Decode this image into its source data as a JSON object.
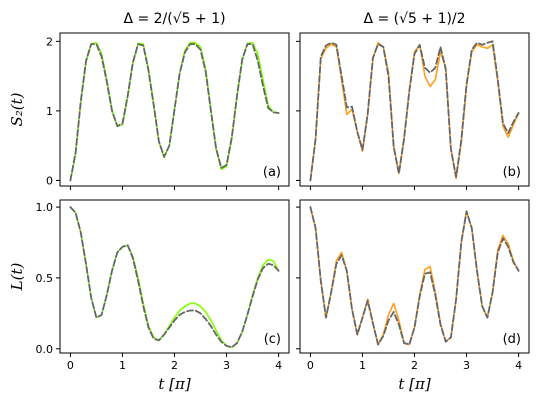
{
  "chart_data": [
    {
      "type": "line",
      "panel": "a",
      "title": "Δ = 2/(√5 + 1)",
      "xlabel": "",
      "ylabel": "S₂(t)",
      "xlim": [
        -0.2,
        4.2
      ],
      "ylim": [
        -0.08,
        2.12
      ],
      "xticks": [
        0,
        1,
        2,
        3,
        4
      ],
      "xtick_labels": [],
      "yticks": [
        0,
        1,
        2
      ],
      "ytick_labels": [
        "0",
        "1",
        "2"
      ],
      "label": "(a)",
      "x": [
        0,
        0.1,
        0.2,
        0.3,
        0.4,
        0.5,
        0.6,
        0.7,
        0.8,
        0.9,
        1.0,
        1.1,
        1.2,
        1.3,
        1.4,
        1.5,
        1.6,
        1.7,
        1.8,
        1.9,
        2.0,
        2.1,
        2.2,
        2.3,
        2.4,
        2.5,
        2.6,
        2.7,
        2.8,
        2.9,
        3.0,
        3.1,
        3.2,
        3.3,
        3.4,
        3.5,
        3.6,
        3.7,
        3.8,
        3.9,
        4.0
      ],
      "series": [
        {
          "color": "#7fff00",
          "dash": false,
          "values": [
            0.0,
            0.38,
            1.12,
            1.7,
            1.96,
            1.98,
            1.82,
            1.45,
            1.02,
            0.78,
            0.8,
            1.2,
            1.68,
            1.97,
            1.96,
            1.6,
            1.1,
            0.56,
            0.33,
            0.5,
            1.02,
            1.55,
            1.87,
            1.98,
            1.98,
            1.92,
            1.6,
            1.02,
            0.45,
            0.16,
            0.2,
            0.6,
            1.2,
            1.72,
            1.97,
            1.98,
            1.82,
            1.45,
            1.08,
            0.98,
            0.97
          ]
        },
        {
          "color": "#666666",
          "dash": true,
          "values": [
            0.0,
            0.4,
            1.14,
            1.72,
            1.96,
            1.96,
            1.78,
            1.42,
            1.0,
            0.78,
            0.82,
            1.22,
            1.7,
            1.96,
            1.94,
            1.58,
            1.08,
            0.56,
            0.34,
            0.5,
            1.02,
            1.54,
            1.84,
            1.96,
            1.96,
            1.88,
            1.56,
            1.0,
            0.46,
            0.18,
            0.22,
            0.62,
            1.22,
            1.74,
            1.96,
            1.96,
            1.72,
            1.36,
            1.04,
            0.98,
            0.97
          ]
        }
      ]
    },
    {
      "type": "line",
      "panel": "b",
      "title": "Δ = (√5 + 1)/2",
      "xlabel": "",
      "ylabel": "",
      "xlim": [
        -0.2,
        4.2
      ],
      "ylim": [
        -0.08,
        2.12
      ],
      "xticks": [
        0,
        1,
        2,
        3,
        4
      ],
      "xtick_labels": [],
      "yticks": [
        0,
        1,
        2
      ],
      "ytick_labels": [],
      "label": "(b)",
      "x": [
        0,
        0.1,
        0.2,
        0.3,
        0.4,
        0.5,
        0.6,
        0.7,
        0.8,
        0.9,
        1.0,
        1.1,
        1.2,
        1.3,
        1.4,
        1.5,
        1.6,
        1.7,
        1.8,
        1.9,
        2.0,
        2.1,
        2.2,
        2.3,
        2.4,
        2.5,
        2.6,
        2.7,
        2.8,
        2.9,
        3.0,
        3.1,
        3.2,
        3.3,
        3.4,
        3.5,
        3.6,
        3.7,
        3.8,
        3.9,
        4.0
      ],
      "series": [
        {
          "color": "#ff9f1c",
          "dash": false,
          "values": [
            0.0,
            0.6,
            1.75,
            1.9,
            1.96,
            1.92,
            1.45,
            0.95,
            1.02,
            0.7,
            0.42,
            0.95,
            1.75,
            1.98,
            1.92,
            1.55,
            0.5,
            0.1,
            0.62,
            1.3,
            1.85,
            1.95,
            1.5,
            1.35,
            1.45,
            1.85,
            1.62,
            0.45,
            0.03,
            0.55,
            1.35,
            1.85,
            1.95,
            1.92,
            1.9,
            1.95,
            1.42,
            0.78,
            0.62,
            0.8,
            0.97
          ]
        },
        {
          "color": "#666666",
          "dash": true,
          "values": [
            0.0,
            0.6,
            1.78,
            1.94,
            1.98,
            1.95,
            1.5,
            1.05,
            1.06,
            0.7,
            0.44,
            0.96,
            1.76,
            1.96,
            1.92,
            1.5,
            0.48,
            0.1,
            0.6,
            1.28,
            1.82,
            1.95,
            1.62,
            1.55,
            1.62,
            1.92,
            1.6,
            0.45,
            0.05,
            0.58,
            1.38,
            1.88,
            1.98,
            1.95,
            1.98,
            2.0,
            1.45,
            0.82,
            0.68,
            0.84,
            0.97
          ]
        }
      ]
    },
    {
      "type": "line",
      "panel": "c",
      "title": "",
      "xlabel": "t [π]",
      "ylabel": "L(t)",
      "xlim": [
        -0.2,
        4.2
      ],
      "ylim": [
        -0.03,
        1.05
      ],
      "xticks": [
        0,
        1,
        2,
        3,
        4
      ],
      "xtick_labels": [
        "0",
        "1",
        "2",
        "3",
        "4"
      ],
      "yticks": [
        0.0,
        0.5,
        1.0
      ],
      "ytick_labels": [
        "0.0",
        "0.5",
        "1.0"
      ],
      "label": "(c)",
      "x": [
        0,
        0.1,
        0.2,
        0.3,
        0.4,
        0.5,
        0.6,
        0.7,
        0.8,
        0.9,
        1.0,
        1.1,
        1.2,
        1.3,
        1.4,
        1.5,
        1.6,
        1.7,
        1.8,
        1.9,
        2.0,
        2.1,
        2.2,
        2.3,
        2.4,
        2.5,
        2.6,
        2.7,
        2.8,
        2.9,
        3.0,
        3.1,
        3.2,
        3.3,
        3.4,
        3.5,
        3.6,
        3.7,
        3.8,
        3.9,
        4.0
      ],
      "series": [
        {
          "color": "#7fff00",
          "dash": false,
          "values": [
            1.0,
            0.96,
            0.82,
            0.6,
            0.36,
            0.22,
            0.24,
            0.38,
            0.55,
            0.68,
            0.72,
            0.73,
            0.65,
            0.5,
            0.32,
            0.16,
            0.08,
            0.06,
            0.1,
            0.16,
            0.22,
            0.27,
            0.3,
            0.32,
            0.32,
            0.3,
            0.26,
            0.2,
            0.13,
            0.06,
            0.02,
            0.01,
            0.04,
            0.12,
            0.24,
            0.38,
            0.5,
            0.59,
            0.63,
            0.62,
            0.55
          ]
        },
        {
          "color": "#666666",
          "dash": true,
          "values": [
            1.0,
            0.96,
            0.82,
            0.6,
            0.36,
            0.22,
            0.24,
            0.38,
            0.55,
            0.68,
            0.72,
            0.73,
            0.64,
            0.48,
            0.3,
            0.15,
            0.07,
            0.06,
            0.1,
            0.15,
            0.2,
            0.24,
            0.26,
            0.27,
            0.27,
            0.25,
            0.21,
            0.16,
            0.1,
            0.05,
            0.02,
            0.01,
            0.04,
            0.12,
            0.24,
            0.37,
            0.49,
            0.57,
            0.6,
            0.59,
            0.55
          ]
        }
      ]
    },
    {
      "type": "line",
      "panel": "d",
      "title": "",
      "xlabel": "t [π]",
      "ylabel": "",
      "xlim": [
        -0.2,
        4.2
      ],
      "ylim": [
        -0.03,
        1.05
      ],
      "xticks": [
        0,
        1,
        2,
        3,
        4
      ],
      "xtick_labels": [
        "0",
        "1",
        "2",
        "3",
        "4"
      ],
      "yticks": [
        0.0,
        0.5,
        1.0
      ],
      "ytick_labels": [],
      "label": "(d)",
      "x": [
        0,
        0.1,
        0.2,
        0.3,
        0.4,
        0.5,
        0.6,
        0.7,
        0.8,
        0.9,
        1.0,
        1.1,
        1.2,
        1.3,
        1.4,
        1.5,
        1.6,
        1.7,
        1.8,
        1.9,
        2.0,
        2.1,
        2.2,
        2.3,
        2.4,
        2.5,
        2.6,
        2.7,
        2.8,
        2.9,
        3.0,
        3.1,
        3.2,
        3.3,
        3.4,
        3.5,
        3.6,
        3.7,
        3.8,
        3.9,
        4.0
      ],
      "series": [
        {
          "color": "#ff9f1c",
          "dash": false,
          "values": [
            1.0,
            0.85,
            0.48,
            0.22,
            0.4,
            0.62,
            0.68,
            0.55,
            0.28,
            0.1,
            0.22,
            0.35,
            0.18,
            0.03,
            0.1,
            0.24,
            0.32,
            0.2,
            0.04,
            0.03,
            0.15,
            0.38,
            0.56,
            0.58,
            0.4,
            0.18,
            0.05,
            0.08,
            0.35,
            0.75,
            0.97,
            0.85,
            0.55,
            0.3,
            0.22,
            0.4,
            0.7,
            0.8,
            0.74,
            0.62,
            0.55
          ]
        },
        {
          "color": "#666666",
          "dash": true,
          "values": [
            1.0,
            0.85,
            0.48,
            0.22,
            0.4,
            0.6,
            0.66,
            0.55,
            0.28,
            0.1,
            0.22,
            0.34,
            0.18,
            0.03,
            0.09,
            0.2,
            0.26,
            0.17,
            0.04,
            0.03,
            0.15,
            0.37,
            0.53,
            0.54,
            0.38,
            0.17,
            0.05,
            0.08,
            0.35,
            0.75,
            0.97,
            0.85,
            0.55,
            0.3,
            0.22,
            0.4,
            0.68,
            0.78,
            0.72,
            0.61,
            0.55
          ]
        }
      ]
    }
  ]
}
